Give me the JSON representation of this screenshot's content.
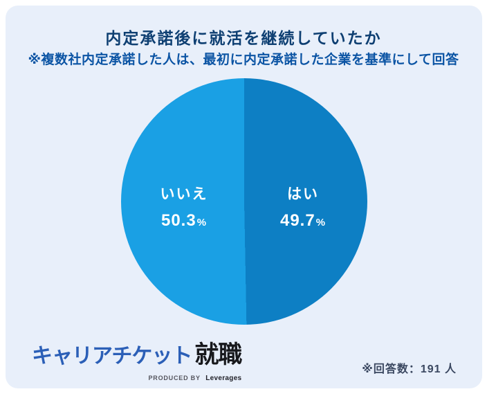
{
  "header": {
    "title": "内定承諾後に就活を継続していたか",
    "subtitle": "※複数社内定承諾した人は、最初に内定承諾した企業を基準にして回答"
  },
  "chart_data": {
    "type": "pie",
    "title": "内定承諾後に就活を継続していたか",
    "subtitle": "※複数社内定承諾した人は、最初に内定承諾した企業を基準にして回答",
    "unit": "%",
    "start_angle_deg": 0,
    "direction": "clockwise",
    "series": [
      {
        "name": "はい",
        "value": 49.7,
        "color": "#0d7fc4",
        "side": "right"
      },
      {
        "name": "いいえ",
        "value": 50.3,
        "color": "#1aa0e4",
        "side": "left"
      }
    ],
    "respondents": 191,
    "respondents_note": "※回答数：191 人",
    "legend_position": "inside-slices",
    "grid": false
  },
  "pie_labels": {
    "left": {
      "name": "いいえ",
      "value": "50.3",
      "unit": "%"
    },
    "right": {
      "name": "はい",
      "value": "49.7",
      "unit": "%"
    }
  },
  "footer": {
    "logo_main": "キャリアチケット",
    "logo_suffix": "就職",
    "logo_byline_prefix": "PRODUCED BY",
    "logo_byline_brand": "Leverages",
    "note": "※回答数：191 人"
  },
  "colors": {
    "page_bg": "#ffffff",
    "card_bg": "#e8effa",
    "title": "#0e3f72",
    "subtitle": "#0b54a4",
    "slice_left": "#1aa0e4",
    "slice_right": "#0d7fc4",
    "label_text": "#ffffff",
    "logo_blue": "#2b5fb7",
    "logo_dark": "#17181c",
    "note_text": "#3a4760"
  }
}
